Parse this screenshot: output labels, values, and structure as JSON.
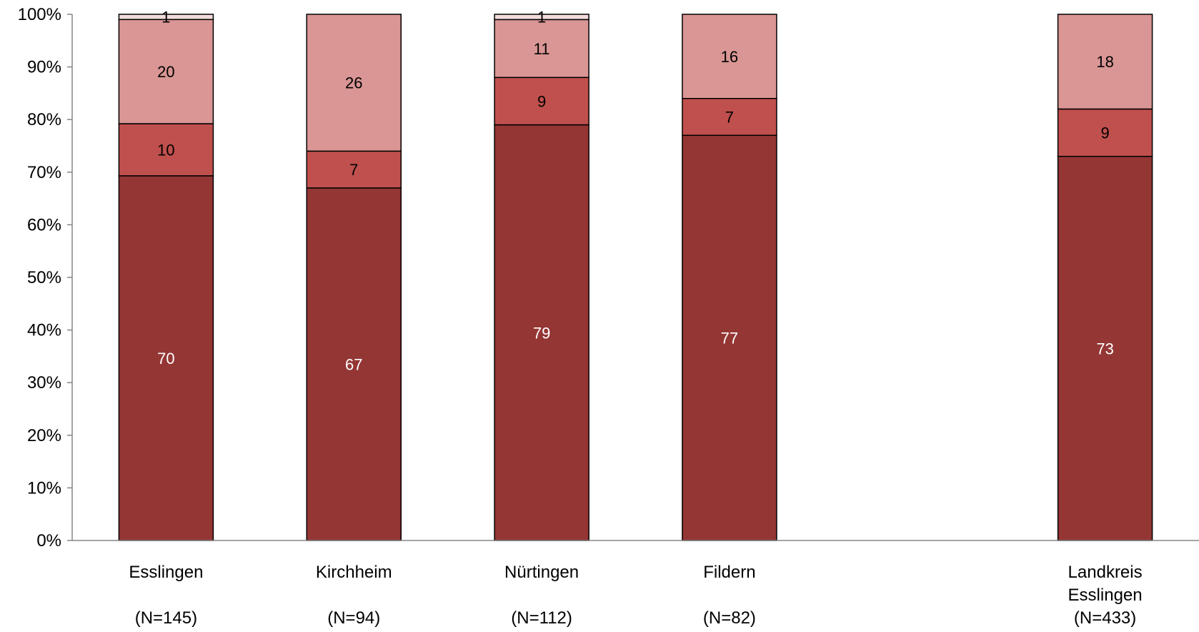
{
  "chart_data": {
    "type": "bar",
    "stacked": "percent",
    "categories": [
      {
        "lines": [
          "Esslingen",
          "",
          "(N=145)"
        ]
      },
      {
        "lines": [
          "Kirchheim",
          "",
          "(N=94)"
        ]
      },
      {
        "lines": [
          "Nürtingen",
          "",
          "(N=112)"
        ]
      },
      {
        "lines": [
          "Fildern",
          "",
          "(N=82)"
        ]
      },
      {
        "lines": [],
        "empty": true
      },
      {
        "lines": [
          "Landkreis",
          "Esslingen",
          "(N=433)"
        ]
      }
    ],
    "series": [
      {
        "color": "#943634",
        "label_color": "#ffffff",
        "values": [
          70,
          67,
          79,
          77,
          null,
          73
        ]
      },
      {
        "color": "#c0504d",
        "label_color": "#000000",
        "values": [
          10,
          7,
          9,
          7,
          null,
          9
        ]
      },
      {
        "color": "#d99694",
        "label_color": "#000000",
        "values": [
          20,
          26,
          11,
          16,
          null,
          18
        ]
      },
      {
        "color": "#f2dcdb",
        "label_color": "#000000",
        "values": [
          1,
          null,
          1,
          null,
          null,
          null
        ]
      }
    ],
    "y_ticks": [
      "0%",
      "10%",
      "20%",
      "30%",
      "40%",
      "50%",
      "60%",
      "70%",
      "80%",
      "90%",
      "100%"
    ],
    "ylim": [
      0,
      100
    ],
    "grid": false,
    "legend": "none"
  }
}
